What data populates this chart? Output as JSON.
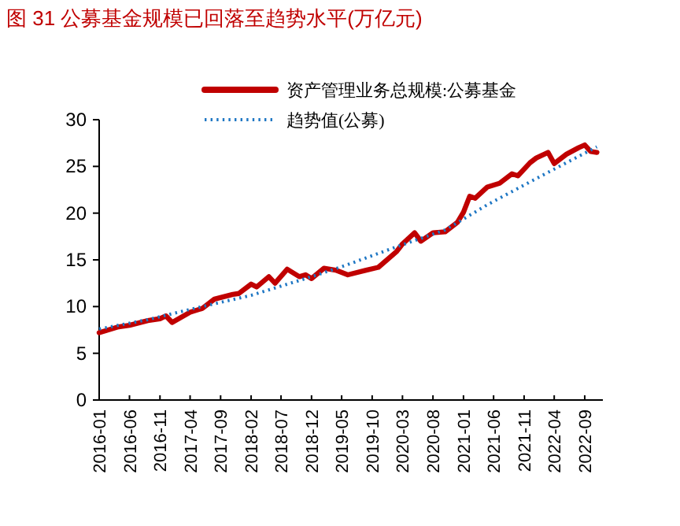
{
  "chart_data": {
    "type": "line",
    "title": "图 31 公募基金规模已回落至趋势水平(万亿元)",
    "xlim": [
      "2016-01",
      "2022-12"
    ],
    "xticks": [
      "2016-01",
      "2016-06",
      "2016-11",
      "2017-04",
      "2017-09",
      "2018-02",
      "2018-07",
      "2018-12",
      "2019-05",
      "2019-10",
      "2020-03",
      "2020-08",
      "2021-01",
      "2021-06",
      "2021-11",
      "2022-04",
      "2022-09"
    ],
    "ylim": [
      0,
      30
    ],
    "yticks": [
      0,
      5,
      10,
      15,
      20,
      25,
      30
    ],
    "grid": false,
    "legend": "top",
    "marker": "none",
    "series": [
      {
        "name": "资产管理业务总规模:公募基金",
        "color": "#c00000",
        "line_style": "solid",
        "x": [
          "2016-01",
          "2016-04",
          "2016-06",
          "2016-09",
          "2016-11",
          "2016-12",
          "2017-01",
          "2017-04",
          "2017-06",
          "2017-08",
          "2017-11",
          "2017-12",
          "2018-02",
          "2018-03",
          "2018-05",
          "2018-06",
          "2018-08",
          "2018-10",
          "2018-11",
          "2018-12",
          "2019-02",
          "2019-04",
          "2019-06",
          "2019-09",
          "2019-11",
          "2020-02",
          "2020-03",
          "2020-05",
          "2020-06",
          "2020-08",
          "2020-10",
          "2020-12",
          "2021-01",
          "2021-02",
          "2021-03",
          "2021-05",
          "2021-07",
          "2021-09",
          "2021-10",
          "2021-12",
          "2022-01",
          "2022-03",
          "2022-04",
          "2022-06",
          "2022-08",
          "2022-09",
          "2022-10",
          "2022-11"
        ],
        "values": [
          7.2,
          7.8,
          8.0,
          8.5,
          8.7,
          9.0,
          8.3,
          9.4,
          9.8,
          10.8,
          11.3,
          11.4,
          12.4,
          12.1,
          13.2,
          12.5,
          14.0,
          13.2,
          13.4,
          13.0,
          14.1,
          13.9,
          13.4,
          13.9,
          14.2,
          15.9,
          16.7,
          17.9,
          17.0,
          17.9,
          18.0,
          19.0,
          20.1,
          21.8,
          21.6,
          22.8,
          23.2,
          24.2,
          24.0,
          25.4,
          25.9,
          26.5,
          25.3,
          26.3,
          27.0,
          27.3,
          26.6,
          26.5
        ]
      },
      {
        "name": "趋势值(公募)",
        "color": "#1f77c4",
        "line_style": "dotted",
        "x": [
          "2016-01",
          "2016-09",
          "2017-04",
          "2018-02",
          "2019-01",
          "2019-06",
          "2020-02",
          "2020-10",
          "2021-05",
          "2022-01",
          "2022-11"
        ],
        "values": [
          7.6,
          8.6,
          9.7,
          11.2,
          13.4,
          14.5,
          16.4,
          18.2,
          20.9,
          23.7,
          27.1
        ]
      }
    ]
  }
}
